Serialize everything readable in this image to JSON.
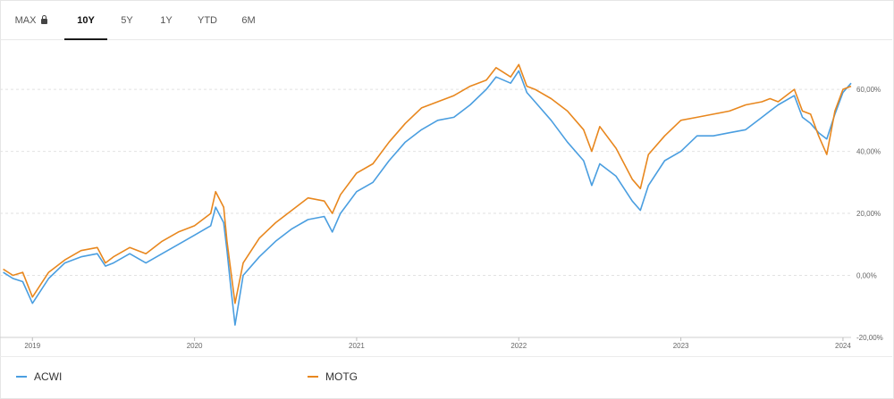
{
  "tabs": [
    {
      "label": "MAX",
      "locked": true,
      "active": false
    },
    {
      "label": "10Y",
      "locked": false,
      "active": true
    },
    {
      "label": "5Y",
      "locked": false,
      "active": false
    },
    {
      "label": "1Y",
      "locked": false,
      "active": false
    },
    {
      "label": "YTD",
      "locked": false,
      "active": false
    },
    {
      "label": "6M",
      "locked": false,
      "active": false
    }
  ],
  "legend": [
    {
      "name": "ACWI",
      "color": "#4a9ee0"
    },
    {
      "name": "MOTG",
      "color": "#e8871e"
    }
  ],
  "chart_data": {
    "type": "line",
    "title": "",
    "xlabel": "",
    "ylabel": "",
    "x_ticks": [
      "2019",
      "2020",
      "2021",
      "2022",
      "2023",
      "2024"
    ],
    "y_ticks": [
      "60,00%",
      "40,00%",
      "20,00%",
      "0,00%",
      "-20,00%"
    ],
    "y_tick_values": [
      60,
      40,
      20,
      0,
      -20
    ],
    "xlim": [
      2018.8,
      2024.05
    ],
    "ylim": [
      -20,
      75
    ],
    "grid": true,
    "series": [
      {
        "name": "ACWI",
        "color": "#4a9ee0",
        "x": [
          2018.82,
          2018.88,
          2018.94,
          2019.0,
          2019.1,
          2019.2,
          2019.3,
          2019.4,
          2019.45,
          2019.5,
          2019.6,
          2019.7,
          2019.8,
          2019.9,
          2020.0,
          2020.1,
          2020.13,
          2020.18,
          2020.2,
          2020.22,
          2020.25,
          2020.3,
          2020.4,
          2020.5,
          2020.6,
          2020.7,
          2020.8,
          2020.85,
          2020.9,
          2021.0,
          2021.1,
          2021.2,
          2021.3,
          2021.4,
          2021.5,
          2021.6,
          2021.7,
          2021.8,
          2021.86,
          2021.95,
          2022.0,
          2022.05,
          2022.1,
          2022.2,
          2022.3,
          2022.4,
          2022.45,
          2022.5,
          2022.6,
          2022.7,
          2022.75,
          2022.8,
          2022.9,
          2023.0,
          2023.1,
          2023.2,
          2023.3,
          2023.4,
          2023.5,
          2023.55,
          2023.6,
          2023.7,
          2023.75,
          2023.8,
          2023.85,
          2023.9,
          2023.95,
          2024.0,
          2024.05
        ],
        "y": [
          1,
          -1,
          -2,
          -9,
          -1,
          4,
          6,
          7,
          3,
          4,
          7,
          4,
          7,
          10,
          13,
          16,
          22,
          17,
          8,
          -2,
          -16,
          0,
          6,
          11,
          15,
          18,
          19,
          14,
          20,
          27,
          30,
          37,
          43,
          47,
          50,
          51,
          55,
          60,
          64,
          62,
          66,
          59,
          56,
          50,
          43,
          37,
          29,
          36,
          32,
          24,
          21,
          29,
          37,
          40,
          45,
          45,
          46,
          47,
          51,
          53,
          55,
          58,
          51,
          49,
          46,
          44,
          52,
          59,
          62
        ]
      },
      {
        "name": "MOTG",
        "color": "#e8871e",
        "x": [
          2018.82,
          2018.88,
          2018.94,
          2019.0,
          2019.1,
          2019.2,
          2019.3,
          2019.4,
          2019.45,
          2019.5,
          2019.6,
          2019.7,
          2019.8,
          2019.9,
          2020.0,
          2020.1,
          2020.13,
          2020.18,
          2020.2,
          2020.22,
          2020.25,
          2020.3,
          2020.4,
          2020.5,
          2020.6,
          2020.7,
          2020.8,
          2020.85,
          2020.9,
          2021.0,
          2021.1,
          2021.2,
          2021.3,
          2021.4,
          2021.5,
          2021.6,
          2021.7,
          2021.8,
          2021.86,
          2021.95,
          2022.0,
          2022.05,
          2022.1,
          2022.2,
          2022.3,
          2022.4,
          2022.45,
          2022.5,
          2022.6,
          2022.7,
          2022.75,
          2022.8,
          2022.9,
          2023.0,
          2023.1,
          2023.2,
          2023.3,
          2023.4,
          2023.5,
          2023.55,
          2023.6,
          2023.7,
          2023.75,
          2023.8,
          2023.85,
          2023.9,
          2023.95,
          2024.0,
          2024.05
        ],
        "y": [
          2,
          0,
          1,
          -7,
          1,
          5,
          8,
          9,
          4,
          6,
          9,
          7,
          11,
          14,
          16,
          20,
          27,
          22,
          11,
          3,
          -9,
          4,
          12,
          17,
          21,
          25,
          24,
          20,
          26,
          33,
          36,
          43,
          49,
          54,
          56,
          58,
          61,
          63,
          67,
          64,
          68,
          61,
          60,
          57,
          53,
          47,
          40,
          48,
          41,
          31,
          28,
          39,
          45,
          50,
          51,
          52,
          53,
          55,
          56,
          57,
          56,
          60,
          53,
          52,
          45,
          39,
          53,
          60,
          61
        ]
      }
    ]
  }
}
